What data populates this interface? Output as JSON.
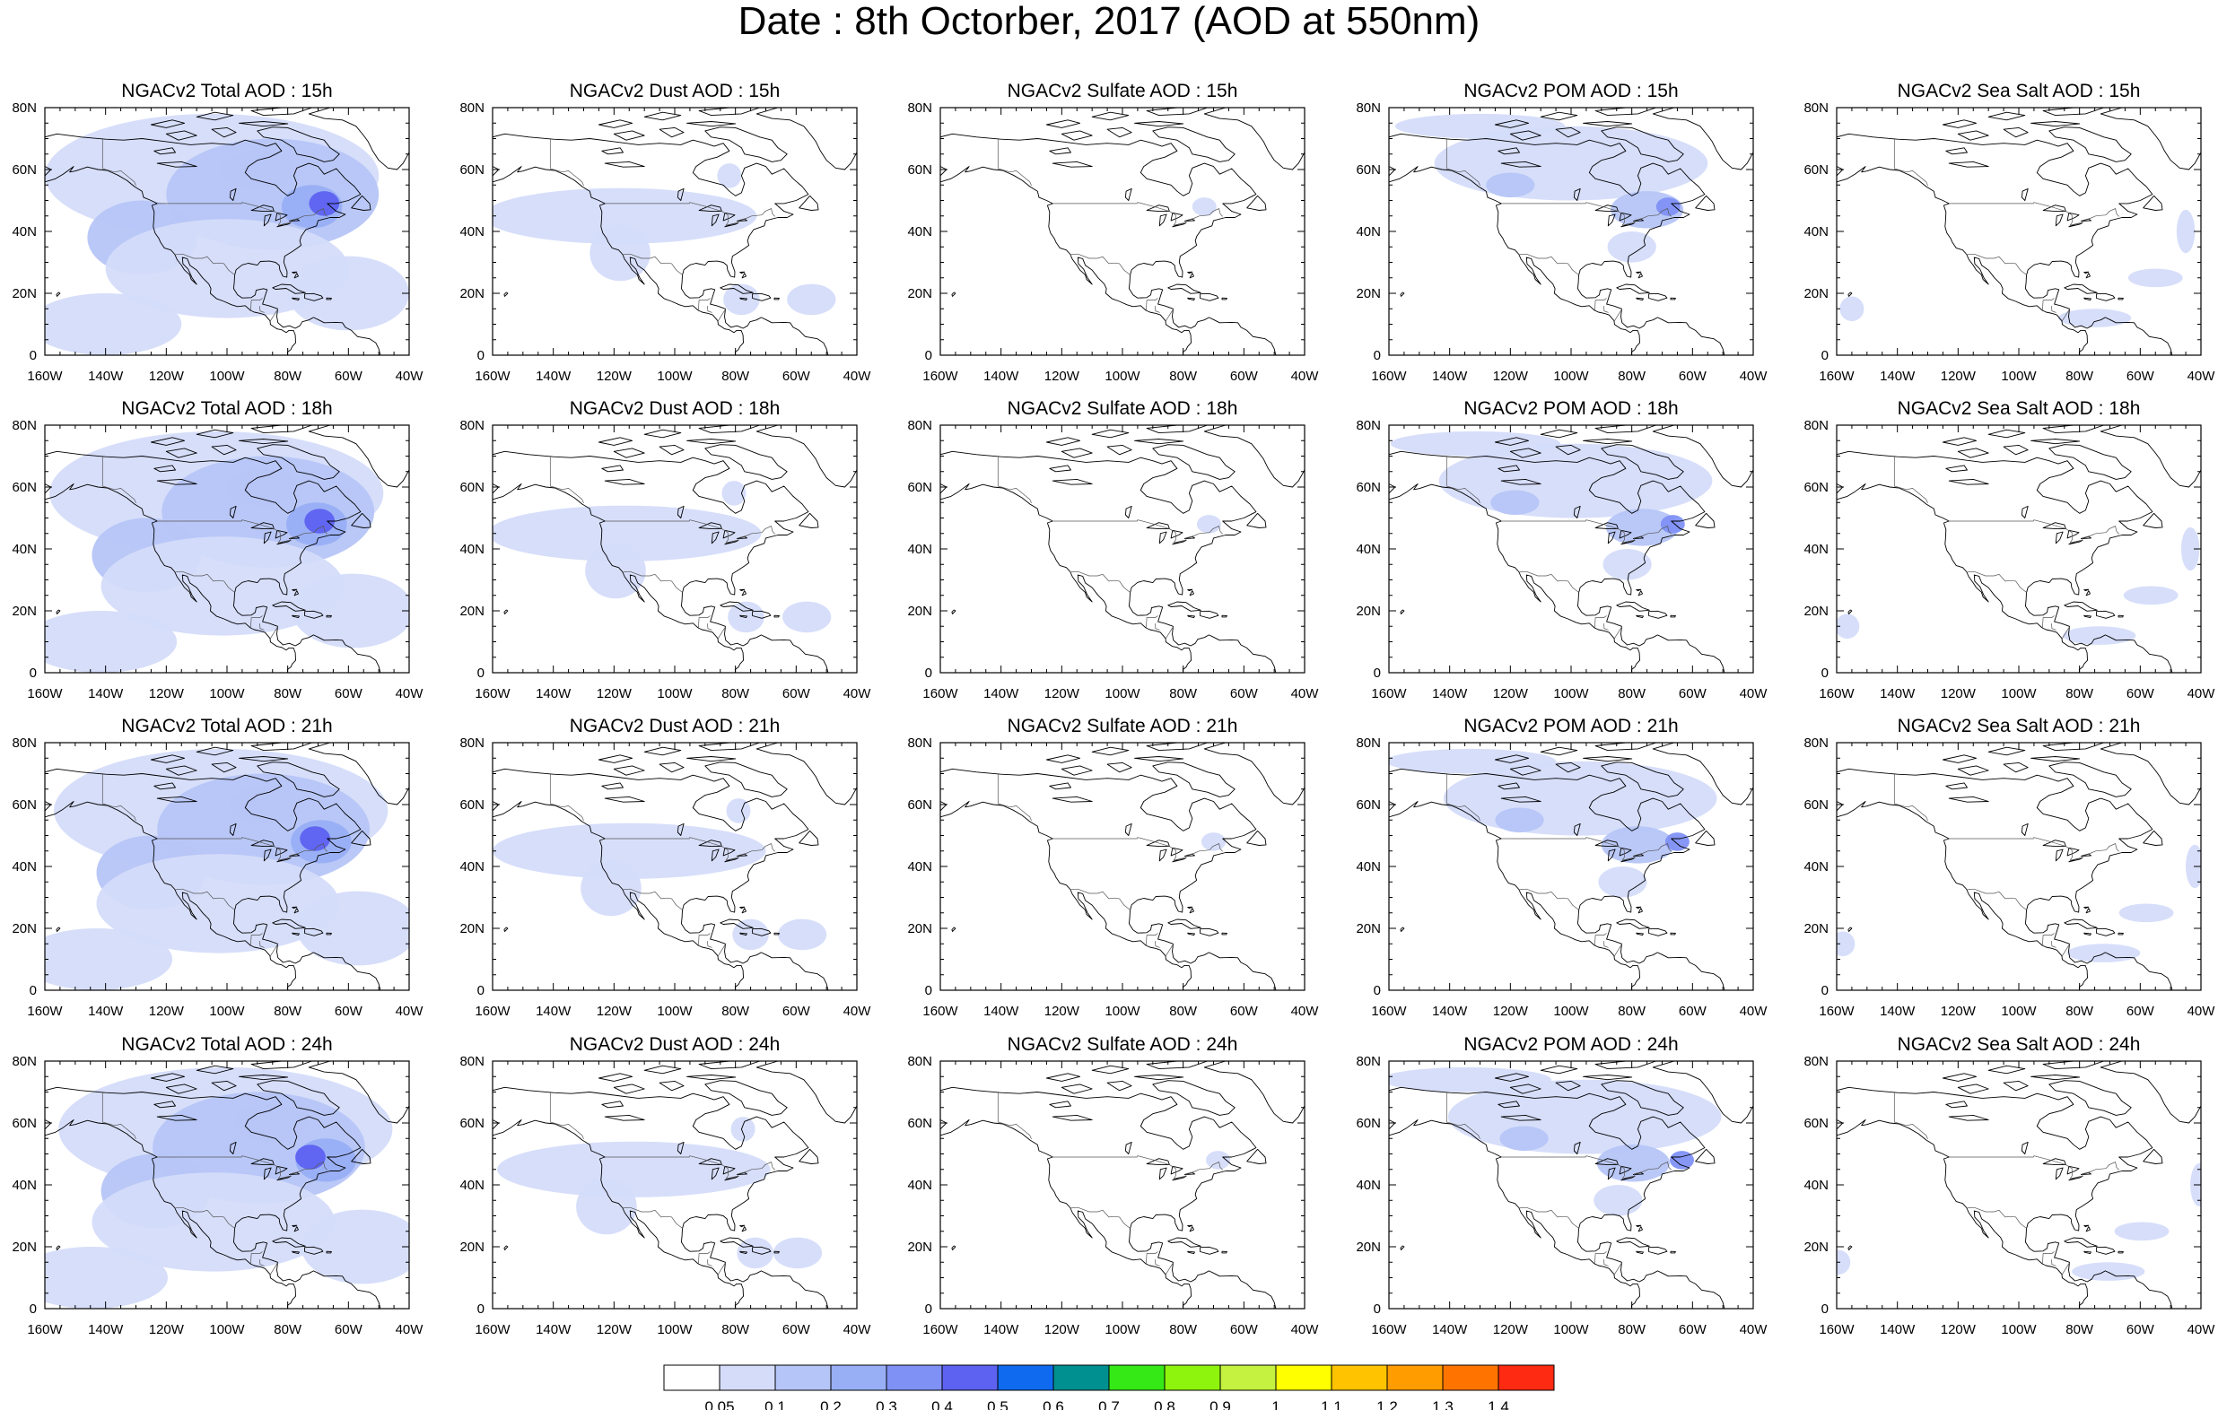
{
  "figure": {
    "title": "Date : 8th Octorber, 2017 (AOD at 550nm)"
  },
  "map": {
    "projection": "cylindrical equidistant",
    "lon_range": [
      -160,
      -40
    ],
    "lat_range": [
      0,
      80
    ],
    "lon_ticks": [
      "160W",
      "140W",
      "120W",
      "100W",
      "80W",
      "60W",
      "40W"
    ],
    "lat_ticks": [
      "0",
      "20N",
      "40N",
      "60N",
      "80N"
    ],
    "coastline_color": "#000000",
    "background": "#ffffff"
  },
  "panels": [
    {
      "title": "NGACv2 Total AOD : 15h",
      "field": "total",
      "hour": "15h"
    },
    {
      "title": "NGACv2 Dust AOD : 15h",
      "field": "dust",
      "hour": "15h"
    },
    {
      "title": "NGACv2 Sulfate AOD : 15h",
      "field": "sulfate",
      "hour": "15h"
    },
    {
      "title": "NGACv2 POM AOD : 15h",
      "field": "pom",
      "hour": "15h"
    },
    {
      "title": "NGACv2 Sea Salt AOD : 15h",
      "field": "seasalt",
      "hour": "15h"
    },
    {
      "title": "NGACv2 Total AOD : 18h",
      "field": "total",
      "hour": "18h"
    },
    {
      "title": "NGACv2 Dust AOD : 18h",
      "field": "dust",
      "hour": "18h"
    },
    {
      "title": "NGACv2 Sulfate AOD : 18h",
      "field": "sulfate",
      "hour": "18h"
    },
    {
      "title": "NGACv2 POM AOD : 18h",
      "field": "pom",
      "hour": "18h"
    },
    {
      "title": "NGACv2 Sea Salt AOD : 18h",
      "field": "seasalt",
      "hour": "18h"
    },
    {
      "title": "NGACv2 Total AOD : 21h",
      "field": "total",
      "hour": "21h"
    },
    {
      "title": "NGACv2 Dust AOD : 21h",
      "field": "dust",
      "hour": "21h"
    },
    {
      "title": "NGACv2 Sulfate AOD : 21h",
      "field": "sulfate",
      "hour": "21h"
    },
    {
      "title": "NGACv2 POM AOD : 21h",
      "field": "pom",
      "hour": "21h"
    },
    {
      "title": "NGACv2 Sea Salt AOD : 21h",
      "field": "seasalt",
      "hour": "21h"
    },
    {
      "title": "NGACv2 Total AOD : 24h",
      "field": "total",
      "hour": "24h"
    },
    {
      "title": "NGACv2 Dust AOD : 24h",
      "field": "dust",
      "hour": "24h"
    },
    {
      "title": "NGACv2 Sulfate AOD : 24h",
      "field": "sulfate",
      "hour": "24h"
    },
    {
      "title": "NGACv2 POM AOD : 24h",
      "field": "pom",
      "hour": "24h"
    },
    {
      "title": "NGACv2 Sea Salt  AOD : 24h",
      "field": "seasalt",
      "hour": "24h"
    }
  ],
  "colorbar": {
    "labels": [
      "0.05",
      "0.1",
      "0.2",
      "0.3",
      "0.4",
      "0.5",
      "0.6",
      "0.7",
      "0.8",
      "0.9",
      "1",
      "1.1",
      "1.2",
      "1.3",
      "1.4"
    ],
    "colors": [
      "#ffffff",
      "#d4dcfa",
      "#b6c5f7",
      "#98aff5",
      "#7f91f5",
      "#5d62f0",
      "#0f6af0",
      "#00908f",
      "#35e916",
      "#8ef30d",
      "#c5f140",
      "#ffff00",
      "#ffc300",
      "#ff9d00",
      "#ff7400",
      "#ff2a12"
    ]
  },
  "plumes": {
    "total": [
      {
        "lon": -105,
        "lat": 58,
        "rx": 55,
        "ry": 20,
        "level": 1
      },
      {
        "lon": -85,
        "lat": 52,
        "rx": 35,
        "ry": 18,
        "level": 2
      },
      {
        "lon": -128,
        "lat": 38,
        "rx": 18,
        "ry": 12,
        "level": 2
      },
      {
        "lon": -100,
        "lat": 28,
        "rx": 40,
        "ry": 16,
        "level": 1
      },
      {
        "lon": -72,
        "lat": 48,
        "rx": 10,
        "ry": 7,
        "level": 3
      },
      {
        "lon": -68,
        "lat": 49,
        "rx": 5,
        "ry": 4,
        "level": 5
      },
      {
        "lon": -90,
        "lat": 60,
        "rx": 12,
        "ry": 6,
        "level": 2
      },
      {
        "lon": -140,
        "lat": 10,
        "rx": 25,
        "ry": 10,
        "level": 1
      },
      {
        "lon": -60,
        "lat": 20,
        "rx": 20,
        "ry": 12,
        "level": 1
      }
    ],
    "dust": [
      {
        "lon": -118,
        "lat": 45,
        "rx": 45,
        "ry": 9,
        "level": 1
      },
      {
        "lon": -118,
        "lat": 33,
        "rx": 10,
        "ry": 9,
        "level": 1
      },
      {
        "lon": -78,
        "lat": 18,
        "rx": 6,
        "ry": 5,
        "level": 1
      },
      {
        "lon": -55,
        "lat": 18,
        "rx": 8,
        "ry": 5,
        "level": 1
      },
      {
        "lon": -82,
        "lat": 58,
        "rx": 4,
        "ry": 4,
        "level": 1
      }
    ],
    "sulfate": [
      {
        "lon": -73,
        "lat": 48,
        "rx": 4,
        "ry": 3,
        "level": 1
      }
    ],
    "pom": [
      {
        "lon": -100,
        "lat": 62,
        "rx": 45,
        "ry": 12,
        "level": 1
      },
      {
        "lon": -130,
        "lat": 74,
        "rx": 28,
        "ry": 4,
        "level": 1
      },
      {
        "lon": -120,
        "lat": 55,
        "rx": 8,
        "ry": 4,
        "level": 2
      },
      {
        "lon": -75,
        "lat": 47,
        "rx": 12,
        "ry": 6,
        "level": 2
      },
      {
        "lon": -68,
        "lat": 48,
        "rx": 4,
        "ry": 3,
        "level": 4
      },
      {
        "lon": -80,
        "lat": 35,
        "rx": 8,
        "ry": 5,
        "level": 1
      }
    ],
    "seasalt": [
      {
        "lon": -45,
        "lat": 40,
        "rx": 3,
        "ry": 7,
        "level": 1
      },
      {
        "lon": -55,
        "lat": 25,
        "rx": 9,
        "ry": 3,
        "level": 1
      },
      {
        "lon": -75,
        "lat": 12,
        "rx": 12,
        "ry": 3,
        "level": 1
      },
      {
        "lon": -155,
        "lat": 15,
        "rx": 4,
        "ry": 4,
        "level": 1
      }
    ]
  }
}
